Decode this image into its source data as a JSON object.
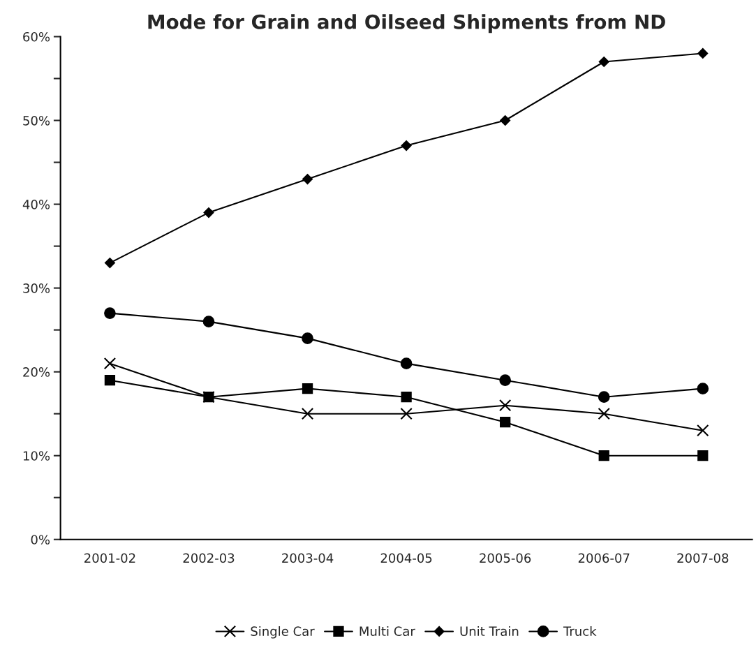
{
  "chart_data": {
    "type": "line",
    "title": "Mode for Grain and Oilseed Shipments from ND",
    "categories": [
      "2001-02",
      "2002-03",
      "2003-04",
      "2004-05",
      "2005-06",
      "2006-07",
      "2007-08"
    ],
    "series": [
      {
        "name": "Single Car",
        "color": "#000000",
        "marker": "cross",
        "values": [
          21,
          17,
          15,
          15,
          16,
          15,
          13
        ]
      },
      {
        "name": "Multi Car",
        "color": "#000000",
        "marker": "square",
        "values": [
          19,
          17,
          18,
          17,
          14,
          10,
          10
        ]
      },
      {
        "name": "Unit Train",
        "color": "#000000",
        "marker": "diamond",
        "values": [
          33,
          39,
          43,
          47,
          50,
          57,
          58
        ]
      },
      {
        "name": "Truck",
        "color": "#000000",
        "marker": "circle",
        "values": [
          27,
          26,
          24,
          21,
          19,
          17,
          18
        ]
      }
    ],
    "ylim": [
      0,
      60
    ],
    "yticks": [
      {
        "value": 0,
        "label": "0%"
      },
      {
        "value": 5,
        "label": null
      },
      {
        "value": 10,
        "label": "10%"
      },
      {
        "value": 15,
        "label": null
      },
      {
        "value": 20,
        "label": "20%"
      },
      {
        "value": 25,
        "label": null
      },
      {
        "value": 30,
        "label": "30%"
      },
      {
        "value": 35,
        "label": null
      },
      {
        "value": 40,
        "label": "40%"
      },
      {
        "value": 45,
        "label": null
      },
      {
        "value": 50,
        "label": "50%"
      },
      {
        "value": 55,
        "label": null
      },
      {
        "value": 60,
        "label": "60%"
      }
    ],
    "grid": false,
    "legend": "bottom",
    "line_style": "solid"
  }
}
